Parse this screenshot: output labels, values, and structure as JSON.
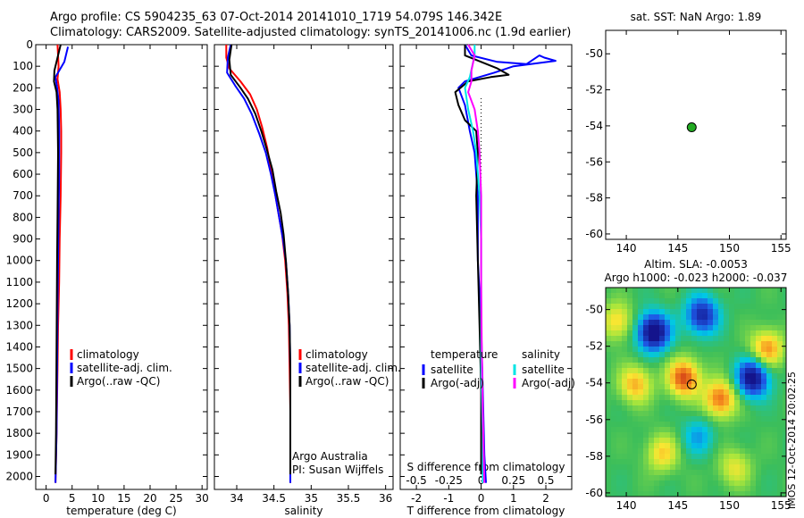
{
  "header": {
    "line1": "Argo profile: CS 5904235_63 07-Oct-2014 20141010_1719 54.079S 146.342E",
    "line2": "Climatology: CARS2009. Satellite-adjusted climatology: synTS_20141006.nc (1.9d earlier)"
  },
  "colors": {
    "climatology": "#ff0000",
    "satellite": "#0000ff",
    "argo": "#000000",
    "cyan": "#00e5e5",
    "magenta": "#ff00ff",
    "float": "#22aa22"
  },
  "stamp": "IMOS 12-Oct-2014 20:02:25",
  "chart_data": [
    {
      "type": "line",
      "xlabel": "temperature (deg C)",
      "xlim": [
        -2,
        31
      ],
      "ylim": [
        2060,
        0
      ],
      "xticks": [
        0,
        5,
        10,
        15,
        20,
        25,
        30
      ],
      "yticks": [
        0,
        100,
        200,
        300,
        400,
        500,
        600,
        700,
        800,
        900,
        1000,
        1100,
        1200,
        1300,
        1400,
        1500,
        1600,
        1700,
        1800,
        1900,
        2000
      ],
      "legend": [
        "climatology",
        "satellite-adj. clim.",
        "Argo(..raw -QC)"
      ],
      "series": [
        {
          "name": "climatology",
          "color": "#ff0000",
          "points": [
            [
              2.2,
              0
            ],
            [
              2.4,
              100
            ],
            [
              2.2,
              160
            ],
            [
              2.6,
              220
            ],
            [
              2.8,
              300
            ],
            [
              2.9,
              400
            ],
            [
              2.9,
              500
            ],
            [
              2.8,
              700
            ],
            [
              2.6,
              900
            ],
            [
              2.5,
              1100
            ],
            [
              2.3,
              1300
            ],
            [
              2.2,
              1500
            ],
            [
              2.0,
              1800
            ],
            [
              1.8,
              2030
            ]
          ]
        },
        {
          "name": "satellite-adj. clim.",
          "color": "#0000ff",
          "points": [
            [
              4.2,
              10
            ],
            [
              3.5,
              80
            ],
            [
              1.8,
              150
            ],
            [
              2.1,
              200
            ],
            [
              2.4,
              260
            ],
            [
              2.5,
              400
            ],
            [
              2.5,
              600
            ],
            [
              2.4,
              800
            ],
            [
              2.3,
              1000
            ],
            [
              2.2,
              1200
            ],
            [
              2.1,
              1500
            ],
            [
              2.0,
              1800
            ],
            [
              1.8,
              2030
            ]
          ]
        },
        {
          "name": "Argo(..raw -QC)",
          "color": "#000000",
          "points": [
            [
              2.8,
              0
            ],
            [
              2.2,
              60
            ],
            [
              1.6,
              120
            ],
            [
              1.5,
              170
            ],
            [
              2.0,
              220
            ],
            [
              2.2,
              300
            ],
            [
              2.3,
              500
            ],
            [
              2.2,
              800
            ],
            [
              2.1,
              1000
            ],
            [
              2.0,
              1400
            ],
            [
              1.9,
              1800
            ],
            [
              1.8,
              1990
            ]
          ]
        }
      ]
    },
    {
      "type": "line",
      "xlabel": "salinity",
      "xlim": [
        33.7,
        36.1
      ],
      "ylim": [
        2060,
        0
      ],
      "xticks": [
        34,
        34.5,
        35,
        35.5,
        36
      ],
      "legend": [
        "climatology",
        "satellite-adj. clim.",
        "Argo(..raw -QC)"
      ],
      "annotations": [
        "Argo Australia",
        "PI: Susan Wijffels"
      ],
      "series": [
        {
          "name": "climatology",
          "color": "#ff0000",
          "points": [
            [
              33.86,
              0
            ],
            [
              33.86,
              60
            ],
            [
              33.9,
              110
            ],
            [
              34.05,
              170
            ],
            [
              34.18,
              230
            ],
            [
              34.27,
              300
            ],
            [
              34.34,
              380
            ],
            [
              34.41,
              480
            ],
            [
              34.46,
              580
            ],
            [
              34.51,
              680
            ],
            [
              34.56,
              780
            ],
            [
              34.61,
              880
            ],
            [
              34.65,
              1000
            ],
            [
              34.68,
              1150
            ],
            [
              34.7,
              1300
            ],
            [
              34.71,
              1500
            ],
            [
              34.72,
              1700
            ],
            [
              34.72,
              2030
            ]
          ]
        },
        {
          "name": "satellite-adj. clim.",
          "color": "#0000ff",
          "points": [
            [
              33.92,
              0
            ],
            [
              33.88,
              60
            ],
            [
              33.87,
              130
            ],
            [
              33.98,
              190
            ],
            [
              34.1,
              250
            ],
            [
              34.2,
              320
            ],
            [
              34.3,
              410
            ],
            [
              34.39,
              500
            ],
            [
              34.46,
              600
            ],
            [
              34.52,
              700
            ],
            [
              34.57,
              800
            ],
            [
              34.62,
              900
            ],
            [
              34.66,
              1000
            ],
            [
              34.69,
              1150
            ],
            [
              34.71,
              1300
            ],
            [
              34.72,
              1500
            ],
            [
              34.72,
              1700
            ],
            [
              34.72,
              2030
            ]
          ]
        },
        {
          "name": "Argo(..raw -QC)",
          "color": "#000000",
          "points": [
            [
              33.93,
              0
            ],
            [
              33.9,
              70
            ],
            [
              33.92,
              140
            ],
            [
              34.05,
              200
            ],
            [
              34.15,
              250
            ],
            [
              34.25,
              320
            ],
            [
              34.33,
              400
            ],
            [
              34.4,
              480
            ],
            [
              34.48,
              580
            ],
            [
              34.53,
              680
            ],
            [
              34.59,
              780
            ],
            [
              34.63,
              880
            ],
            [
              34.66,
              1000
            ],
            [
              34.69,
              1150
            ],
            [
              34.71,
              1300
            ],
            [
              34.72,
              1500
            ],
            [
              34.72,
              1700
            ],
            [
              34.72,
              1990
            ]
          ]
        }
      ]
    },
    {
      "type": "line",
      "xlabel": "T difference from climatology",
      "xlabel2": "S difference from climatology",
      "xlim": [
        -2.5,
        2.8
      ],
      "ylim": [
        2060,
        0
      ],
      "xticks": [
        -2,
        -1,
        0,
        1,
        2
      ],
      "xticks2": [
        "-0.5",
        "-0.25",
        "0",
        "0.25",
        "0.5"
      ],
      "xticks2_pos": [
        -2,
        -1,
        0,
        1,
        2
      ],
      "legend_titles": [
        "temperature",
        "salinity"
      ],
      "legend": [
        "satellite",
        "Argo(-adj)",
        "satellite",
        "Argo(-adj)"
      ],
      "series": [
        {
          "name": "temperature satellite",
          "color": "#0000ff",
          "points": [
            [
              -0.5,
              0
            ],
            [
              -0.3,
              50
            ],
            [
              0.5,
              80
            ],
            [
              1.4,
              90
            ],
            [
              1.8,
              50
            ],
            [
              1.95,
              60
            ],
            [
              2.3,
              75
            ],
            [
              1.0,
              100
            ],
            [
              0.4,
              130
            ],
            [
              -0.5,
              170
            ],
            [
              -0.7,
              200
            ],
            [
              -0.5,
              280
            ],
            [
              -0.35,
              400
            ],
            [
              -0.2,
              500
            ],
            [
              -0.1,
              700
            ],
            [
              -0.1,
              1000
            ],
            [
              0.0,
              1300
            ],
            [
              0.05,
              1600
            ],
            [
              0.1,
              1900
            ],
            [
              0.15,
              2030
            ]
          ]
        },
        {
          "name": "temperature Argo(-adj)",
          "color": "#000000",
          "points": [
            [
              -0.5,
              0
            ],
            [
              -0.5,
              50
            ],
            [
              0.5,
              110
            ],
            [
              0.85,
              140
            ],
            [
              0.3,
              150
            ],
            [
              -0.4,
              170
            ],
            [
              -0.8,
              220
            ],
            [
              -0.7,
              280
            ],
            [
              -0.5,
              350
            ],
            [
              -0.15,
              400
            ],
            [
              -0.1,
              500
            ],
            [
              -0.15,
              700
            ],
            [
              -0.1,
              1000
            ],
            [
              -0.05,
              1300
            ],
            [
              0.0,
              1600
            ],
            [
              0.0,
              1900
            ],
            [
              0.0,
              1990
            ]
          ]
        },
        {
          "name": "salinity satellite",
          "color": "#00e5e5",
          "points": [
            [
              -0.2,
              0
            ],
            [
              -0.2,
              50
            ],
            [
              -0.35,
              150
            ],
            [
              -0.5,
              200
            ],
            [
              -0.45,
              250
            ],
            [
              -0.4,
              300
            ],
            [
              -0.25,
              400
            ],
            [
              -0.15,
              500
            ],
            [
              -0.05,
              700
            ],
            [
              0.0,
              900
            ],
            [
              0.0,
              1200
            ],
            [
              0.0,
              1500
            ],
            [
              0.05,
              1800
            ],
            [
              0.05,
              2030
            ]
          ]
        },
        {
          "name": "salinity Argo(-adj)",
          "color": "#ff00ff",
          "points": [
            [
              -0.4,
              0
            ],
            [
              -0.2,
              50
            ],
            [
              -0.3,
              120
            ],
            [
              -0.3,
              170
            ],
            [
              -0.4,
              220
            ],
            [
              -0.2,
              300
            ],
            [
              -0.1,
              400
            ],
            [
              -0.05,
              500
            ],
            [
              0.0,
              700
            ],
            [
              0.0,
              900
            ],
            [
              0.0,
              1100
            ],
            [
              0.02,
              1400
            ],
            [
              0.05,
              1700
            ],
            [
              0.1,
              2030
            ]
          ]
        }
      ]
    },
    {
      "type": "heatmap",
      "title": "sat. SST: NaN Argo: 1.89",
      "xlim": [
        138,
        155.5
      ],
      "ylim": [
        -60.3,
        -48.7
      ],
      "xticks": [
        140,
        145,
        150,
        155
      ],
      "yticks": [
        -50,
        -52,
        -54,
        -56,
        -58,
        -60
      ],
      "marker": {
        "lon": 146.342,
        "lat": -54.079
      }
    },
    {
      "type": "heatmap",
      "title": "Altim. SLA: -0.0053",
      "subtitle": "Argo h1000: -0.023 h2000: -0.037",
      "xlim": [
        138,
        155.5
      ],
      "ylim": [
        -60.2,
        -48.8
      ],
      "xticks": [
        140,
        145,
        150,
        155
      ],
      "yticks": [
        -50,
        -52,
        -54,
        -56,
        -58,
        -60
      ],
      "marker": {
        "lon": 146.342,
        "lat": -54.079
      }
    }
  ]
}
